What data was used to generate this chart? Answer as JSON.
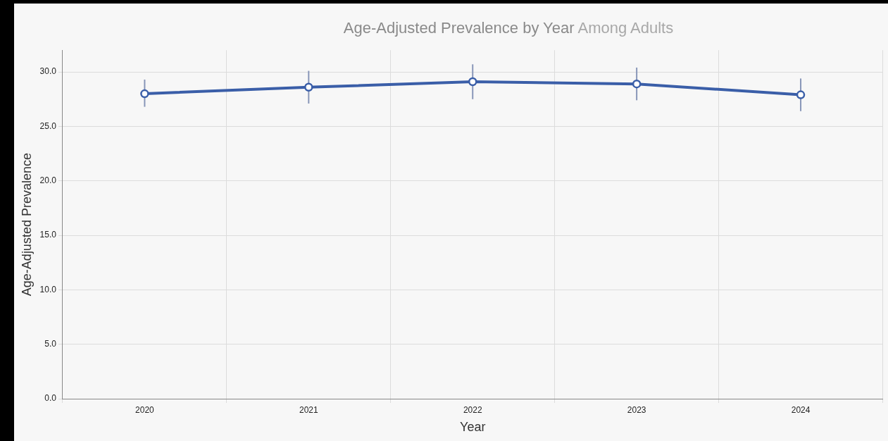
{
  "chart_data": {
    "type": "line",
    "title": "Age-Adjusted Prevalence by Year",
    "subtitle": "Among Adults",
    "xlabel": "Year",
    "ylabel": "Age-Adjusted Prevalence",
    "categories": [
      "2020",
      "2021",
      "2022",
      "2023",
      "2024"
    ],
    "series": [
      {
        "color": "#3a5ea8",
        "values": [
          28.0,
          28.6,
          29.1,
          28.9,
          27.9
        ],
        "errors": [
          [
            26.8,
            29.3
          ],
          [
            27.1,
            30.1
          ],
          [
            27.5,
            30.7
          ],
          [
            27.4,
            30.4
          ],
          [
            26.4,
            29.4
          ]
        ]
      }
    ],
    "ylim": [
      0,
      32
    ],
    "yticks": [
      {
        "value": 0,
        "label": "0.0"
      },
      {
        "value": 5,
        "label": "5.0"
      },
      {
        "value": 10,
        "label": "10.0"
      },
      {
        "value": 15,
        "label": "15.0"
      },
      {
        "value": 20,
        "label": "20.0"
      },
      {
        "value": 25,
        "label": "25.0"
      },
      {
        "value": 30,
        "label": "30.0"
      }
    ],
    "grid": true,
    "legend": false,
    "marker": "circle",
    "line_style": "solid"
  }
}
